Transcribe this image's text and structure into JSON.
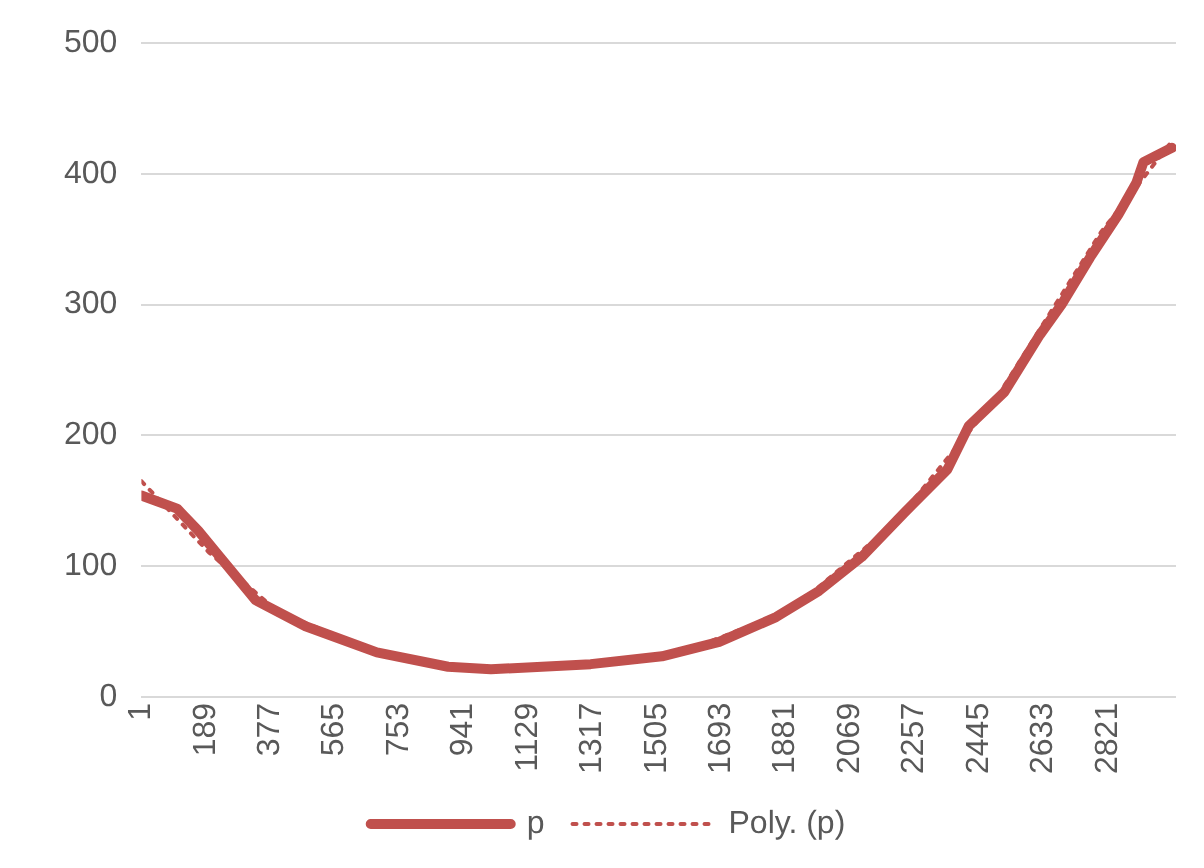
{
  "chart_data": {
    "type": "line",
    "xlim": [
      1,
      3020
    ],
    "xticks": [
      1,
      189,
      377,
      565,
      753,
      941,
      1129,
      1317,
      1505,
      1693,
      1881,
      2069,
      2257,
      2445,
      2633,
      2821
    ],
    "ylim": [
      0,
      500
    ],
    "yticks": [
      0,
      100,
      200,
      300,
      400,
      500
    ],
    "grid": "y",
    "legend": "bottom",
    "marker": "none",
    "series": [
      {
        "name": "p",
        "color": "#c0504d",
        "line_style": "solid",
        "x": [
          1,
          105,
          167,
          230,
          334,
          480,
          688,
          896,
          1021,
          1312,
          1520,
          1687,
          1853,
          1978,
          2103,
          2228,
          2353,
          2415,
          2519,
          2623,
          2686,
          2769,
          2852,
          2904,
          2925,
          3008
        ],
        "values": [
          154,
          144,
          127,
          107,
          74,
          54,
          34,
          23,
          21,
          25,
          31,
          42,
          61,
          81,
          107,
          141,
          174,
          207,
          233,
          277,
          300,
          336,
          369,
          393,
          409,
          420
        ]
      },
      {
        "name": "Poly. (p)",
        "color": "#c0504d",
        "line_style": "dotted",
        "x": [
          1,
          200,
          400,
          700,
          1000,
          1300,
          1600,
          1900,
          2200,
          2500,
          2800,
          3008
        ],
        "values": [
          165,
          110,
          65,
          33,
          21,
          24,
          36,
          67,
          133,
          230,
          355,
          425
        ]
      }
    ]
  }
}
